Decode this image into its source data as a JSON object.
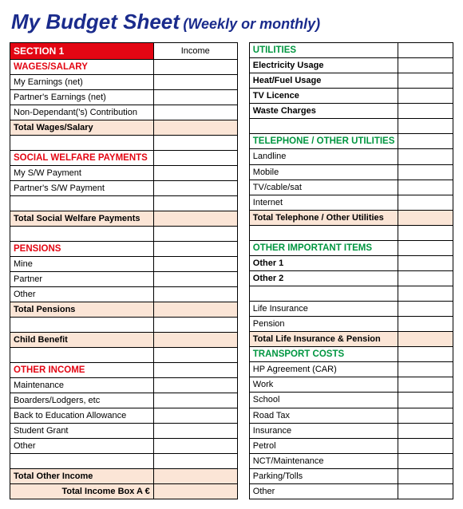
{
  "title": {
    "main": "My Budget Sheet",
    "sub": "(Weekly or monthly)"
  },
  "colors": {
    "title": "#1a2b8c",
    "red": "#e30613",
    "green": "#009640",
    "total_bg": "#fbe5d6",
    "border": "#000000"
  },
  "left": {
    "section1": "SECTION 1",
    "income": "Income",
    "wages_hdr": "WAGES/SALARY",
    "wages_rows": [
      "My Earnings (net)",
      "Partner's Earnings (net)",
      "Non-Dependant('s) Contribution"
    ],
    "wages_total": "Total Wages/Salary",
    "sw_hdr": "SOCIAL WELFARE PAYMENTS",
    "sw_rows": [
      "My S/W Payment",
      "Partner's S/W Payment"
    ],
    "sw_total": "Total Social Welfare Payments",
    "pens_hdr": "PENSIONS",
    "pens_rows": [
      "Mine",
      "Partner",
      "Other"
    ],
    "pens_total": "Total Pensions",
    "child_benefit": "Child Benefit",
    "other_hdr": "OTHER INCOME",
    "other_rows": [
      "Maintenance",
      "Boarders/Lodgers, etc",
      "Back to Education Allowance",
      "Student Grant",
      "Other"
    ],
    "other_total": "Total Other Income",
    "final": "Total Income Box A €"
  },
  "right": {
    "util_hdr": "UTILITIES",
    "util_rows": [
      "Electricity Usage",
      "Heat/Fuel Usage",
      "TV Licence",
      "Waste Charges"
    ],
    "tel_hdr": "TELEPHONE / OTHER UTILITIES",
    "tel_rows": [
      "Landline",
      "Mobile",
      "TV/cable/sat",
      "Internet"
    ],
    "tel_total": "Total Telephone / Other Utilities",
    "imp_hdr": "OTHER IMPORTANT ITEMS",
    "imp_rows": [
      "Other 1",
      "Other 2"
    ],
    "life_rows": [
      "Life Insurance",
      "Pension"
    ],
    "life_total": "Total Life Insurance & Pension",
    "trans_hdr": "TRANSPORT COSTS",
    "trans_rows": [
      "HP Agreement (CAR)",
      "Work",
      "School",
      "Road Tax",
      "Insurance",
      "Petrol",
      "NCT/Maintenance",
      "Parking/Tolls",
      "Other"
    ]
  }
}
